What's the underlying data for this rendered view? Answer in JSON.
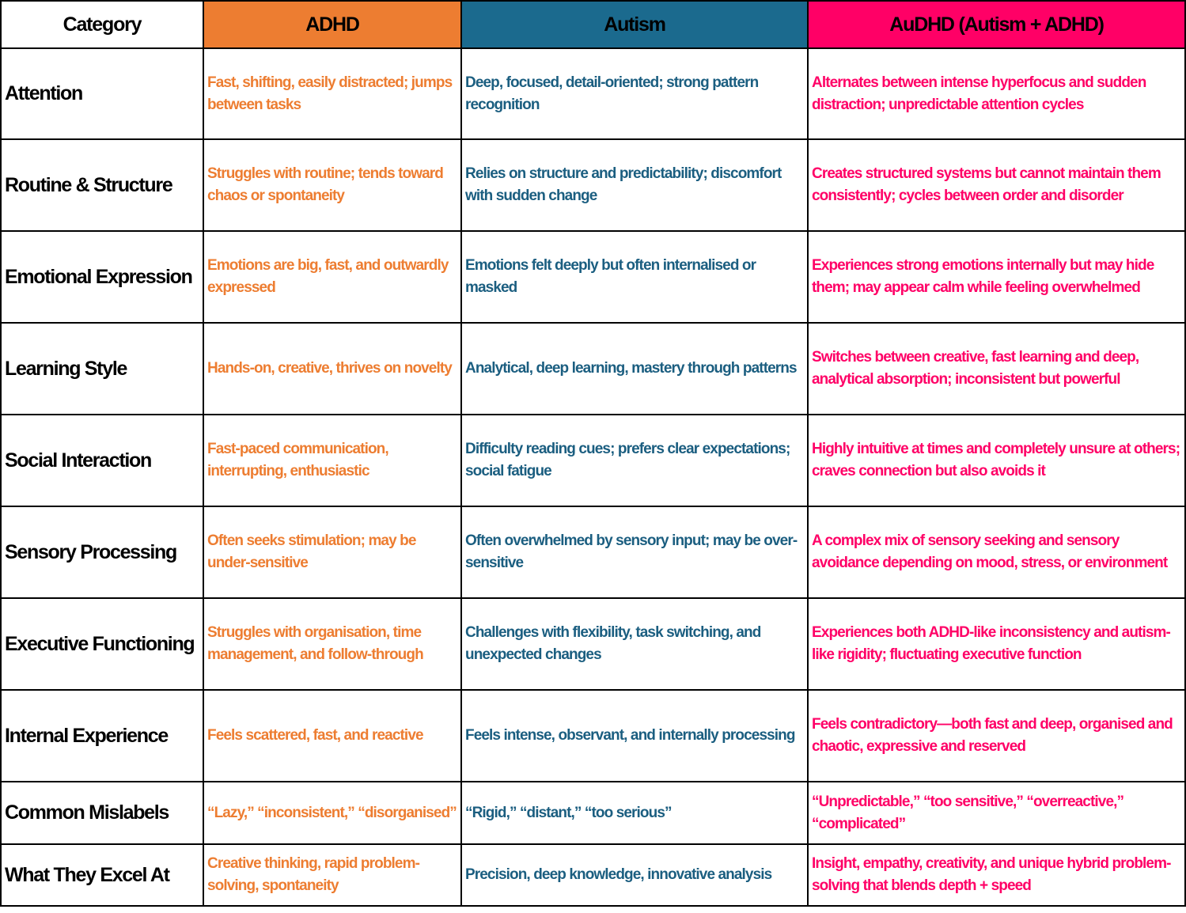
{
  "colors": {
    "adhd": "#ed7d31",
    "autism": "#1b6a8e",
    "audhd": "#ff0066",
    "border": "#000000"
  },
  "headers": {
    "category": "Category",
    "adhd": "ADHD",
    "autism": "Autism",
    "audhd": "AuDHD (Autism + ADHD)"
  },
  "rows": [
    {
      "category": "Attention",
      "adhd": "Fast, shifting, easily distracted; jumps between tasks",
      "autism": "Deep, focused, detail-oriented; strong pattern recognition",
      "audhd": "Alternates between intense hyperfocus and sudden distraction; unpredictable attention cycles"
    },
    {
      "category": "Routine & Structure",
      "adhd": "Struggles with routine; tends toward chaos or spontaneity",
      "autism": "Relies on structure and predictability; discomfort with sudden change",
      "audhd": "Creates structured systems but cannot maintain them consistently; cycles between order and disorder"
    },
    {
      "category": "Emotional Expression",
      "adhd": "Emotions are big, fast, and outwardly expressed",
      "autism": "Emotions felt deeply but often internalised or masked",
      "audhd": "Experiences strong emotions internally but may hide them; may appear calm while feeling overwhelmed"
    },
    {
      "category": "Learning Style",
      "adhd": "Hands-on, creative, thrives on novelty",
      "autism": "Analytical, deep learning, mastery through patterns",
      "audhd": "Switches between creative, fast learning and deep, analytical absorption; inconsistent but powerful"
    },
    {
      "category": "Social Interaction",
      "adhd": "Fast-paced communication, interrupting, enthusiastic",
      "autism": "Difficulty reading cues; prefers clear expectations; social fatigue",
      "audhd": "Highly intuitive at times and completely unsure at others; craves connection but also avoids it"
    },
    {
      "category": "Sensory Processing",
      "adhd": "Often seeks stimulation; may be under-sensitive",
      "autism": "Often overwhelmed by sensory input; may be over-sensitive",
      "audhd": "A complex mix of sensory seeking and sensory avoidance depending on mood, stress, or environment"
    },
    {
      "category": "Executive Functioning",
      "adhd": "Struggles with organisation, time management, and follow-through",
      "autism": "Challenges with flexibility, task switching, and unexpected changes",
      "audhd": "Experiences both ADHD-like inconsistency and autism-like rigidity; fluctuating executive function"
    },
    {
      "category": "Internal Experience",
      "adhd": "Feels scattered, fast, and reactive",
      "autism": "Feels intense, observant, and internally processing",
      "audhd": "Feels contradictory—both fast and deep, organised and chaotic, expressive and reserved"
    },
    {
      "category": "Common Mislabels",
      "adhd": "“Lazy,” “inconsistent,” “disorganised”",
      "autism": "“Rigid,” “distant,” “too serious”",
      "audhd": "“Unpredictable,” “too sensitive,” “overreactive,” “complicated”"
    },
    {
      "category": "What They Excel At",
      "adhd": "Creative thinking, rapid problem-solving, spontaneity",
      "autism": "Precision, deep knowledge, innovative analysis",
      "audhd": "Insight, empathy, creativity, and unique hybrid problem-solving that blends depth + speed"
    }
  ]
}
